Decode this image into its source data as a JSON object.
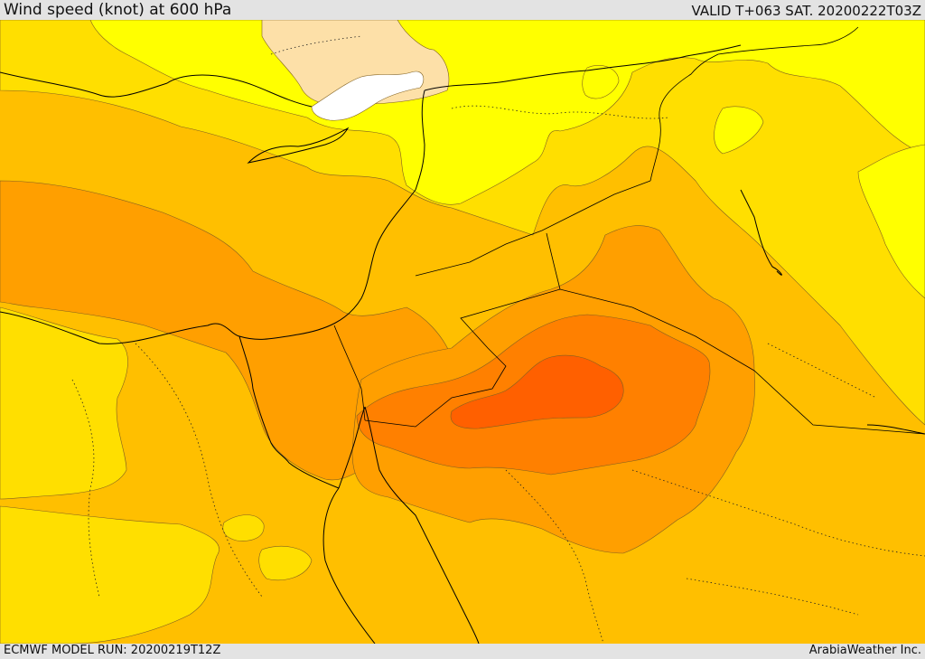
{
  "header": {
    "title": "Wind speed (knot) at 600 hPa",
    "valid": "VALID T+063 SAT. 20200222T03Z"
  },
  "footer": {
    "model_run": "ECMWF MODEL RUN: 20200219T12Z",
    "credit": "ArabiaWeather Inc."
  },
  "colors": {
    "band_very_low": "#ffffff",
    "band_low": "#fde0a8",
    "band_light": "#ffff00",
    "band_moderate": "#ffdf00",
    "band_high": "#ffbf00",
    "band_higher": "#ff9f00",
    "band_strong": "#ff8000",
    "band_max": "#ff6000",
    "coastline": "#000000"
  }
}
